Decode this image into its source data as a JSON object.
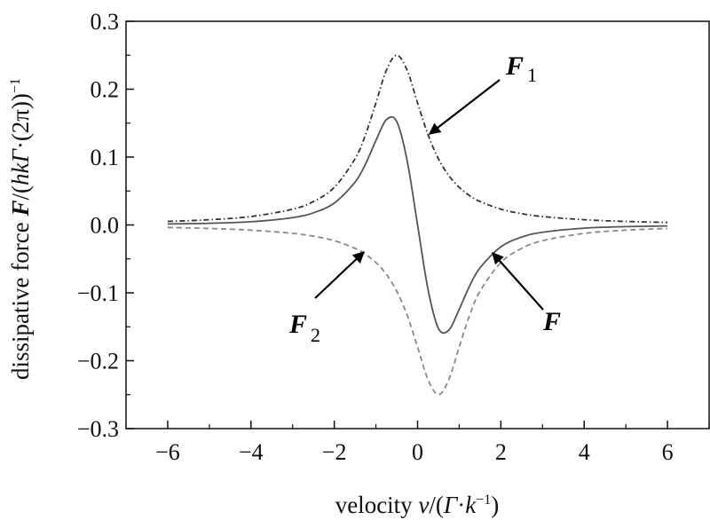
{
  "chart_data": {
    "type": "line",
    "title": "",
    "xlabel": "velocity v/(Γ·k⁻¹)",
    "ylabel": "dissipative force F/(hkΓ·(2π)⁻¹)",
    "xlim": [
      -7,
      7
    ],
    "ylim": [
      -0.3,
      0.3
    ],
    "xticks": [
      -6,
      -4,
      -2,
      0,
      2,
      4,
      6
    ],
    "xtick_labels": [
      "−6",
      "−4",
      "−2",
      "0",
      "2",
      "4",
      "6"
    ],
    "yticks": [
      0.3,
      0.2,
      0.1,
      0.0,
      -0.1,
      -0.2,
      -0.3
    ],
    "ytick_labels": [
      "0.3",
      "0.2",
      "0.1",
      "0.0",
      "−0.1",
      "−0.2",
      "−0.3"
    ],
    "grid": false,
    "legend": "none",
    "x": [
      -6,
      -5,
      -4,
      -3,
      -2.5,
      -2,
      -1.5,
      -1.25,
      -1,
      -0.75,
      -0.5,
      -0.25,
      0,
      0.25,
      0.5,
      0.75,
      1,
      1.25,
      1.5,
      2,
      2.5,
      3,
      4,
      5,
      6
    ],
    "series": [
      {
        "name": "F1",
        "style": "dash-dot",
        "color": "#333333",
        "values": [
          0.0052,
          0.0077,
          0.0124,
          0.0232,
          0.0345,
          0.0554,
          0.0976,
          0.133,
          0.1797,
          0.2277,
          0.25,
          0.2277,
          0.1797,
          0.133,
          0.0976,
          0.0727,
          0.0554,
          0.0432,
          0.0345,
          0.0232,
          0.0166,
          0.0124,
          0.0077,
          0.0052,
          0.0037
        ]
      },
      {
        "name": "F2",
        "style": "dashed",
        "color": "#888888",
        "values": [
          -0.0037,
          -0.0052,
          -0.0077,
          -0.0124,
          -0.0166,
          -0.0232,
          -0.0345,
          -0.0432,
          -0.0554,
          -0.0727,
          -0.0976,
          -0.133,
          -0.1797,
          -0.2277,
          -0.25,
          -0.2277,
          -0.1797,
          -0.133,
          -0.0976,
          -0.0554,
          -0.0345,
          -0.0232,
          -0.0124,
          -0.0077,
          -0.0052
        ]
      },
      {
        "name": "F",
        "style": "solid",
        "color": "#555555",
        "values": [
          0.0015,
          0.0025,
          0.0047,
          0.0108,
          0.0179,
          0.0322,
          0.0631,
          0.0898,
          0.1243,
          0.155,
          0.1524,
          0.0947,
          0,
          -0.0947,
          -0.1524,
          -0.155,
          -0.1243,
          -0.0898,
          -0.0631,
          -0.0322,
          -0.0179,
          -0.0108,
          -0.0047,
          -0.0025,
          -0.0015
        ]
      }
    ],
    "annotations": [
      {
        "label": "F",
        "subscript": "1",
        "points_to": [
          0.3,
          0.136
        ]
      },
      {
        "label": "F",
        "subscript": "2",
        "points_to": [
          -1.3,
          -0.035
        ]
      },
      {
        "label": "F",
        "subscript": "",
        "points_to": [
          1.75,
          -0.035
        ]
      }
    ],
    "axis_text": {
      "x_main": "velocity ",
      "x_v": "v",
      "x_rest": "/(",
      "x_gamma": "Γ",
      "x_dot": "·",
      "x_k": "k",
      "x_exp": "−1",
      "x_close": ")",
      "y_main": "dissipative force ",
      "y_F": "F",
      "y_slash": "/(",
      "y_hk": "hkΓ",
      "y_dot": "·(2π)",
      "y_close": ")",
      "y_exp": "−1"
    }
  }
}
